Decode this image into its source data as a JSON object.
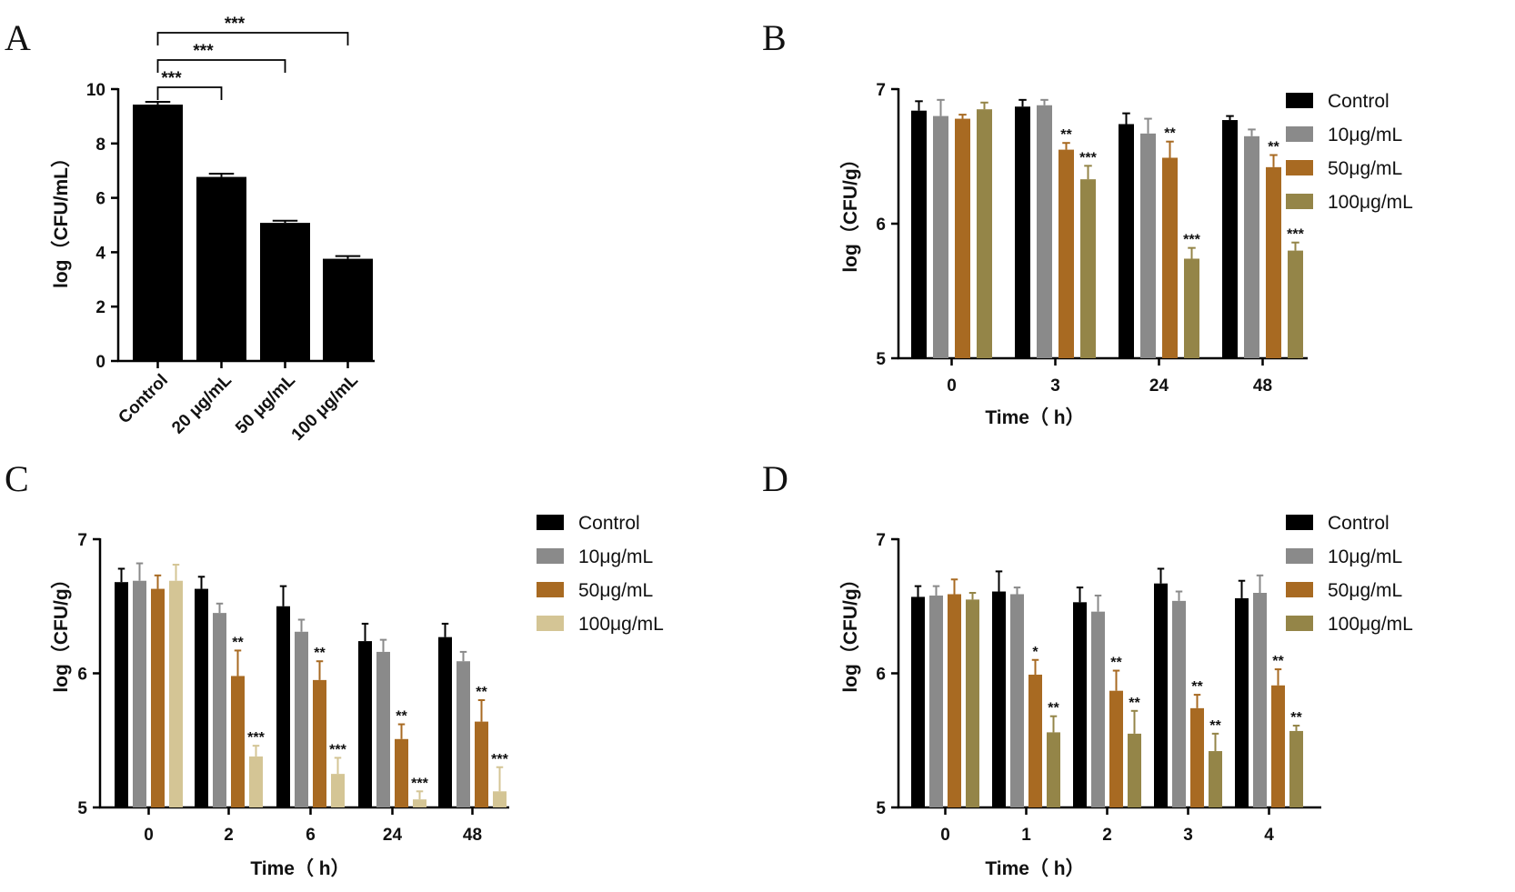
{
  "chart_data": [
    {
      "panel": "A",
      "type": "bar",
      "ylabel": "log（CFU/mL）",
      "ylim": [
        0,
        10
      ],
      "yticks": [
        "0",
        "2",
        "4",
        "6",
        "8",
        "10"
      ],
      "categories": [
        "Control",
        "20 μg/mL",
        "50 μg/mL",
        "100 μg/mL"
      ],
      "series": [
        {
          "name": "log(CFU/mL)",
          "color": "#000000",
          "values": [
            9.43,
            6.77,
            5.08,
            3.76
          ],
          "errors": [
            0.1,
            0.12,
            0.08,
            0.1
          ]
        }
      ],
      "brackets": [
        {
          "from": 0,
          "to": 1,
          "label": "***"
        },
        {
          "from": 0,
          "to": 2,
          "label": "***"
        },
        {
          "from": 0,
          "to": 3,
          "label": "***"
        }
      ]
    },
    {
      "panel": "B",
      "type": "bar",
      "xlabel": "Time（ h）",
      "ylabel": "log（CFU/g）",
      "ylim": [
        5,
        7
      ],
      "yticks": [
        "5",
        "6",
        "7"
      ],
      "categories": [
        "0",
        "3",
        "24",
        "48"
      ],
      "series": [
        {
          "name": "Control",
          "color": "#000000",
          "values": [
            6.84,
            6.87,
            6.74,
            6.77
          ],
          "errors": [
            0.07,
            0.05,
            0.08,
            0.03
          ]
        },
        {
          "name": "10μg/mL",
          "color": "#8a8a8a",
          "values": [
            6.8,
            6.88,
            6.67,
            6.65
          ],
          "errors": [
            0.12,
            0.04,
            0.11,
            0.05
          ]
        },
        {
          "name": "50μg/mL",
          "color": "#a86a22",
          "values": [
            6.78,
            6.55,
            6.49,
            6.42
          ],
          "errors": [
            0.03,
            0.05,
            0.12,
            0.09
          ]
        },
        {
          "name": "100μg/mL",
          "color": "#948548",
          "values": [
            6.85,
            6.33,
            5.74,
            5.8
          ],
          "errors": [
            0.05,
            0.1,
            0.08,
            0.06
          ]
        }
      ],
      "annotations": [
        {
          "category": 1,
          "series": 2,
          "label": "**"
        },
        {
          "category": 1,
          "series": 3,
          "label": "***"
        },
        {
          "category": 2,
          "series": 2,
          "label": "**"
        },
        {
          "category": 2,
          "series": 3,
          "label": "***"
        },
        {
          "category": 3,
          "series": 2,
          "label": "**"
        },
        {
          "category": 3,
          "series": 3,
          "label": "***"
        }
      ]
    },
    {
      "panel": "C",
      "type": "bar",
      "xlabel": "Time（ h）",
      "ylabel": "log（CFU/g）",
      "ylim": [
        5,
        7
      ],
      "yticks": [
        "5",
        "6",
        "7"
      ],
      "categories": [
        "0",
        "2",
        "6",
        "24",
        "48"
      ],
      "series": [
        {
          "name": "Control",
          "color": "#000000",
          "values": [
            6.68,
            6.63,
            6.5,
            6.24,
            6.27
          ],
          "errors": [
            0.1,
            0.09,
            0.15,
            0.13,
            0.1
          ]
        },
        {
          "name": "10μg/mL",
          "color": "#8a8a8a",
          "values": [
            6.69,
            6.45,
            6.31,
            6.16,
            6.09
          ],
          "errors": [
            0.13,
            0.07,
            0.09,
            0.09,
            0.07
          ]
        },
        {
          "name": "50μg/mL",
          "color": "#a86a22",
          "values": [
            6.63,
            5.98,
            5.95,
            5.51,
            5.64
          ],
          "errors": [
            0.1,
            0.19,
            0.14,
            0.11,
            0.16
          ]
        },
        {
          "name": "100μg/mL",
          "color": "#d4c595",
          "values": [
            6.69,
            5.38,
            5.25,
            5.06,
            5.12
          ],
          "errors": [
            0.12,
            0.08,
            0.12,
            0.06,
            0.18
          ]
        }
      ],
      "annotations": [
        {
          "category": 1,
          "series": 2,
          "label": "**"
        },
        {
          "category": 1,
          "series": 3,
          "label": "***"
        },
        {
          "category": 2,
          "series": 2,
          "label": "**"
        },
        {
          "category": 2,
          "series": 3,
          "label": "***"
        },
        {
          "category": 3,
          "series": 2,
          "label": "**"
        },
        {
          "category": 3,
          "series": 3,
          "label": "***"
        },
        {
          "category": 4,
          "series": 2,
          "label": "**"
        },
        {
          "category": 4,
          "series": 3,
          "label": "***"
        }
      ]
    },
    {
      "panel": "D",
      "type": "bar",
      "xlabel": "Time（ h）",
      "ylabel": "log（CFU/g）",
      "ylim": [
        5,
        7
      ],
      "yticks": [
        "5",
        "6",
        "7"
      ],
      "categories": [
        "0",
        "1",
        "2",
        "3",
        "4"
      ],
      "series": [
        {
          "name": "Control",
          "color": "#000000",
          "values": [
            6.57,
            6.61,
            6.53,
            6.67,
            6.56
          ],
          "errors": [
            0.08,
            0.15,
            0.11,
            0.11,
            0.13
          ]
        },
        {
          "name": "10μg/mL",
          "color": "#8a8a8a",
          "values": [
            6.58,
            6.59,
            6.46,
            6.54,
            6.6
          ],
          "errors": [
            0.07,
            0.05,
            0.12,
            0.07,
            0.13
          ]
        },
        {
          "name": "50μg/mL",
          "color": "#a86a22",
          "values": [
            6.59,
            5.99,
            5.87,
            5.74,
            5.91
          ],
          "errors": [
            0.11,
            0.11,
            0.15,
            0.1,
            0.12
          ]
        },
        {
          "name": "100μg/mL",
          "color": "#948548",
          "values": [
            6.55,
            5.56,
            5.55,
            5.42,
            5.57
          ],
          "errors": [
            0.05,
            0.12,
            0.17,
            0.13,
            0.04
          ]
        }
      ],
      "annotations": [
        {
          "category": 1,
          "series": 2,
          "label": "*"
        },
        {
          "category": 1,
          "series": 3,
          "label": "**"
        },
        {
          "category": 2,
          "series": 2,
          "label": "**"
        },
        {
          "category": 2,
          "series": 3,
          "label": "**"
        },
        {
          "category": 3,
          "series": 2,
          "label": "**"
        },
        {
          "category": 3,
          "series": 3,
          "label": "**"
        },
        {
          "category": 4,
          "series": 2,
          "label": "**"
        },
        {
          "category": 4,
          "series": 3,
          "label": "**"
        }
      ]
    }
  ]
}
